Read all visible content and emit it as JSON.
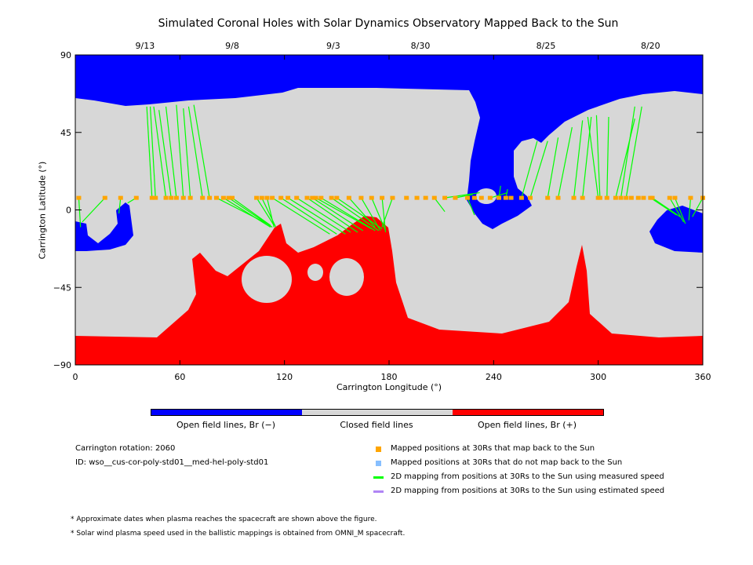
{
  "chart_data": {
    "type": "map",
    "title": "Simulated Coronal Holes with Solar Dynamics Observatory Mapped Back to the Sun",
    "xlabel": "Carrington Longitude (°)",
    "ylabel": "Carrington Latitude (°)",
    "xlim": [
      0,
      360
    ],
    "ylim": [
      -90,
      90
    ],
    "xticks": [
      "0",
      "60",
      "120",
      "180",
      "240",
      "300",
      "360"
    ],
    "xtick_values": [
      0,
      60,
      120,
      180,
      240,
      300,
      360
    ],
    "yticks": [
      "90",
      "45",
      "0",
      "−45",
      "−90"
    ],
    "ytick_values": [
      90,
      45,
      0,
      -45,
      -90
    ],
    "top_dates": [
      {
        "label": "9/13",
        "lon": 40
      },
      {
        "label": "9/8",
        "lon": 90
      },
      {
        "label": "9/3",
        "lon": 148
      },
      {
        "label": "8/30",
        "lon": 198
      },
      {
        "label": "8/25",
        "lon": 270
      },
      {
        "label": "8/20",
        "lon": 330
      }
    ],
    "marker_lat": 7,
    "marker_lons": [
      2,
      17,
      26,
      35,
      44,
      46,
      52,
      55,
      58,
      62,
      66,
      73,
      77,
      81,
      85,
      88,
      90,
      104,
      107,
      110,
      113,
      118,
      122,
      127,
      133,
      136,
      138,
      141,
      147,
      150,
      157,
      164,
      170,
      176,
      182,
      190,
      196,
      201,
      206,
      212,
      218,
      225,
      229,
      233,
      238,
      243,
      247,
      250,
      256,
      261,
      271,
      277,
      286,
      291,
      300,
      301,
      305,
      310,
      313,
      316,
      319,
      323,
      326,
      330,
      331,
      341,
      344,
      353,
      360,
      360
    ],
    "mapping_lines": [
      [
        2,
        3,
        -10
      ],
      [
        17,
        4,
        -7
      ],
      [
        26,
        25,
        -2
      ],
      [
        35,
        30,
        4
      ],
      [
        44,
        41,
        60
      ],
      [
        46,
        43,
        60
      ],
      [
        52,
        45,
        60
      ],
      [
        55,
        48,
        58
      ],
      [
        58,
        52,
        60
      ],
      [
        62,
        58,
        61
      ],
      [
        66,
        62,
        59
      ],
      [
        73,
        65,
        60
      ],
      [
        77,
        68,
        61
      ],
      [
        81,
        112,
        -9
      ],
      [
        85,
        112,
        -10
      ],
      [
        88,
        113,
        -10
      ],
      [
        90,
        112,
        -9
      ],
      [
        104,
        114,
        -9
      ],
      [
        107,
        115,
        -10
      ],
      [
        110,
        114,
        -10
      ],
      [
        113,
        146,
        -14
      ],
      [
        118,
        150,
        -14
      ],
      [
        122,
        155,
        -14
      ],
      [
        127,
        158,
        -13
      ],
      [
        133,
        162,
        -13
      ],
      [
        136,
        165,
        -12
      ],
      [
        138,
        170,
        -11
      ],
      [
        141,
        172,
        -12
      ],
      [
        147,
        174,
        -12
      ],
      [
        150,
        176,
        -11
      ],
      [
        157,
        172,
        -10
      ],
      [
        164,
        175,
        -12
      ],
      [
        170,
        178,
        -12
      ],
      [
        176,
        178,
        -13
      ],
      [
        182,
        176,
        -10
      ],
      [
        206,
        212,
        -1
      ],
      [
        212,
        232,
        10
      ],
      [
        218,
        228,
        9
      ],
      [
        225,
        229,
        -3
      ],
      [
        238,
        248,
        10
      ],
      [
        243,
        244,
        14
      ],
      [
        247,
        248,
        12
      ],
      [
        256,
        265,
        40
      ],
      [
        261,
        271,
        40
      ],
      [
        271,
        277,
        42
      ],
      [
        277,
        285,
        48
      ],
      [
        286,
        291,
        52
      ],
      [
        291,
        296,
        54
      ],
      [
        300,
        294,
        54
      ],
      [
        301,
        299,
        55
      ],
      [
        305,
        306,
        54
      ],
      [
        310,
        321,
        53
      ],
      [
        313,
        321,
        60
      ],
      [
        316,
        325,
        60
      ],
      [
        330,
        345,
        -3
      ],
      [
        331,
        347,
        -4
      ],
      [
        341,
        349,
        -7
      ],
      [
        344,
        350,
        -8
      ],
      [
        353,
        352,
        -6
      ],
      [
        360,
        354,
        -4
      ]
    ],
    "colorbar": [
      {
        "label": "Open field lines, Br (−)",
        "color": "#0000ff"
      },
      {
        "label": "Closed field lines",
        "color": "#d7d7d7"
      },
      {
        "label": "Open field lines, Br (+)",
        "color": "#ff0000"
      }
    ]
  },
  "info": {
    "rotation": "Carrington rotation: 2060",
    "id": "ID: wso__cus-cor-poly-std01__med-hel-poly-std01"
  },
  "legend": [
    {
      "label": "Mapped positions at 30Rs that map back to the Sun",
      "color": "#ffa500"
    },
    {
      "label": "Mapped positions at 30Rs that do not map back to the Sun",
      "color": "#87bfff"
    },
    {
      "label": "2D mapping from positions at 30Rs to the Sun using measured speed",
      "color": "#00ff00"
    },
    {
      "label": "2D mapping from positions at 30Rs to the Sun using estimated speed",
      "color": "#b085f5"
    }
  ],
  "notes": [
    "* Approximate dates when plasma reaches the spacecraft are shown above the figure.",
    "* Solar wind plasma speed used in the ballistic mappings is obtained from OMNI_M spacecraft."
  ]
}
